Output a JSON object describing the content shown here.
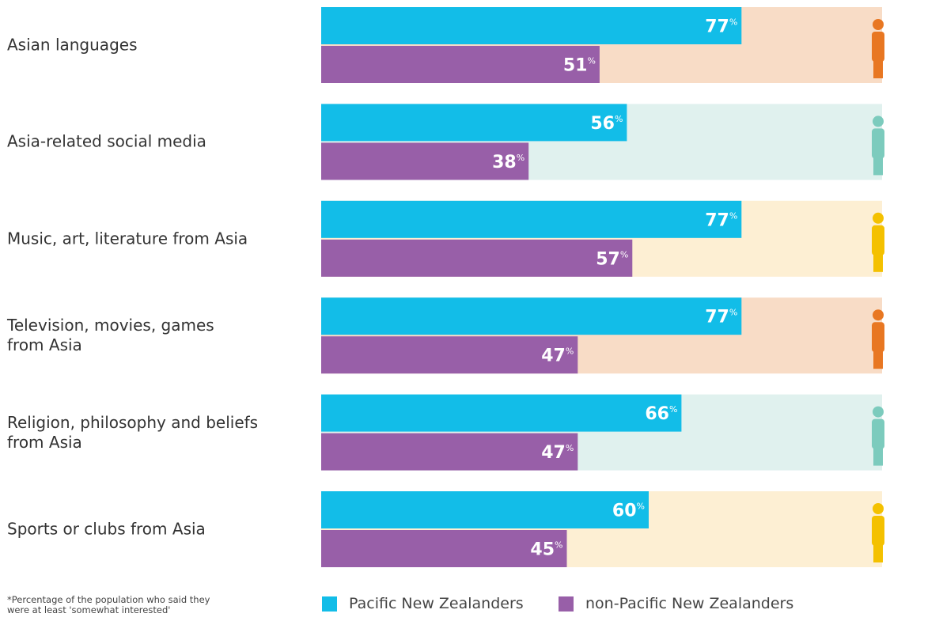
{
  "chart_data": {
    "type": "hbar",
    "categories": [
      "Asian languages",
      "Asia-related social media",
      "Music, art, literature from Asia",
      "Television, movies, games\nfrom Asia",
      "Religion, philosophy and beliefs\nfrom Asia",
      "Sports or clubs from Asia"
    ],
    "series": [
      {
        "name": "Pacific New Zealanders",
        "color": "#12bde8",
        "values": [
          77,
          56,
          77,
          77,
          66,
          60
        ],
        "value_labels": [
          "77%",
          "56%",
          "77%",
          "77%",
          "66%",
          "60%"
        ]
      },
      {
        "name": "non-Pacific New Zealanders",
        "color": "#985fa8",
        "values": [
          51,
          38,
          57,
          47,
          47,
          45
        ],
        "value_labels": [
          "51%",
          "38%",
          "57%",
          "47%",
          "47%",
          "45%"
        ]
      }
    ],
    "xlim": [
      0,
      100
    ],
    "note": "*Percentage of the population who said they\nwere at least 'somewhat interested'"
  }
}
